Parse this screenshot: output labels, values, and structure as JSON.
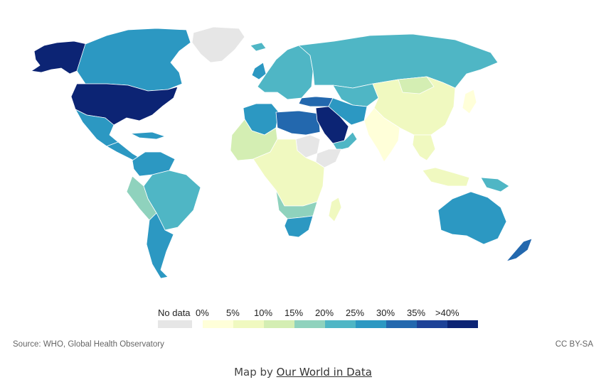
{
  "map": {
    "colors": {
      "ocean": "#ffffff",
      "border": "#ffffff",
      "no_data": "#e6e6e6",
      "c0": "#ffffd9",
      "c5": "#f0f9c0",
      "c10": "#d4eeb3",
      "c15": "#8fd2bd",
      "c20": "#4fb6c5",
      "c25": "#2c98c2",
      "c30": "#2368ae",
      "c35": "#1d4297",
      "c40": "#0c2474"
    },
    "regions": [
      {
        "name": "alaska",
        "bin": "c40"
      },
      {
        "name": "canada",
        "bin": "c25"
      },
      {
        "name": "greenland",
        "bin": "no_data"
      },
      {
        "name": "usa",
        "bin": "c40"
      },
      {
        "name": "mexico",
        "bin": "c25"
      },
      {
        "name": "central-america",
        "bin": "c25"
      },
      {
        "name": "caribbean",
        "bin": "c25"
      },
      {
        "name": "venezuela-colombia",
        "bin": "c25"
      },
      {
        "name": "brazil",
        "bin": "c20"
      },
      {
        "name": "peru-bolivia",
        "bin": "c15"
      },
      {
        "name": "argentina-chile",
        "bin": "c25"
      },
      {
        "name": "iceland",
        "bin": "c20"
      },
      {
        "name": "uk-ireland",
        "bin": "c25"
      },
      {
        "name": "europe",
        "bin": "c20"
      },
      {
        "name": "russia",
        "bin": "c20"
      },
      {
        "name": "turkey",
        "bin": "c30"
      },
      {
        "name": "central-asia",
        "bin": "c20"
      },
      {
        "name": "north-africa-west",
        "bin": "c25"
      },
      {
        "name": "egypt-libya",
        "bin": "c30"
      },
      {
        "name": "arabia",
        "bin": "c40"
      },
      {
        "name": "iran",
        "bin": "c25"
      },
      {
        "name": "oman-yemen",
        "bin": "c20"
      },
      {
        "name": "sahel-west",
        "bin": "c10"
      },
      {
        "name": "sudan",
        "bin": "no_data"
      },
      {
        "name": "somalia",
        "bin": "no_data"
      },
      {
        "name": "africa-central",
        "bin": "c5"
      },
      {
        "name": "southern-africa",
        "bin": "c15"
      },
      {
        "name": "south-africa",
        "bin": "c25"
      },
      {
        "name": "madagascar",
        "bin": "c5"
      },
      {
        "name": "china",
        "bin": "c5"
      },
      {
        "name": "mongolia",
        "bin": "c10"
      },
      {
        "name": "japan",
        "bin": "c0"
      },
      {
        "name": "india",
        "bin": "c0"
      },
      {
        "name": "southeast-asia",
        "bin": "c5"
      },
      {
        "name": "indonesia",
        "bin": "c5"
      },
      {
        "name": "papua",
        "bin": "c20"
      },
      {
        "name": "australia",
        "bin": "c25"
      },
      {
        "name": "new-zealand",
        "bin": "c30"
      }
    ]
  },
  "legend": {
    "items": [
      {
        "label": "No data",
        "color": "#e6e6e6"
      },
      {
        "label": "0%",
        "color": "#ffffd9"
      },
      {
        "label": "5%",
        "color": "#f0f9c0"
      },
      {
        "label": "10%",
        "color": "#d4eeb3"
      },
      {
        "label": "15%",
        "color": "#8fd2bd"
      },
      {
        "label": "20%",
        "color": "#4fb6c5"
      },
      {
        "label": "25%",
        "color": "#2c98c2"
      },
      {
        "label": "30%",
        "color": "#2368ae"
      },
      {
        "label": "35%",
        "color": "#1d4297"
      },
      {
        "label": ">40%",
        "color": "#0c2474"
      }
    ]
  },
  "footer": {
    "source": "Source: WHO, Global Health Observatory",
    "license": "CC BY-SA"
  },
  "caption": {
    "prefix": "Map by ",
    "link": "Our World in Data"
  }
}
